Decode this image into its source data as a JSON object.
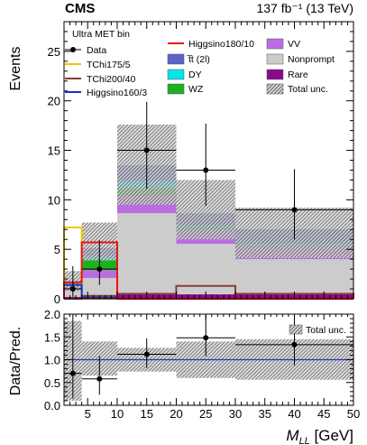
{
  "header": {
    "experiment": "CMS",
    "lumi": "137 fb⁻¹ (13 TeV)"
  },
  "legend": {
    "title": "Ultra MET bin",
    "col1": [
      {
        "label": "Data",
        "key": "data"
      },
      {
        "label": "TChi175/5",
        "key": "tchi175"
      },
      {
        "label": "TChi200/40",
        "key": "tchi200"
      },
      {
        "label": "Higgsino160/3",
        "key": "higgsino160"
      }
    ],
    "col2": [
      {
        "label": "Higgsino180/10",
        "key": "higgsino180"
      },
      {
        "label": "t̅t (2l)",
        "key": "ttbar"
      },
      {
        "label": "DY",
        "key": "dy"
      },
      {
        "label": "WZ",
        "key": "wz"
      }
    ],
    "col3": [
      {
        "label": "VV",
        "key": "vv"
      },
      {
        "label": "Nonprompt",
        "key": "nonprompt"
      },
      {
        "label": "Rare",
        "key": "rare"
      },
      {
        "label": "Total unc.",
        "key": "unc"
      }
    ]
  },
  "colors": {
    "vv": "#b96de0",
    "nonprompt": "#cccccc",
    "rare": "#8b0a8b",
    "ttbar": "#5b63c8",
    "dy": "#00e6ea",
    "wz": "#1fb01f",
    "tchi175": "#f2c600",
    "tchi200": "#8b3a3a",
    "higgsino160": "#1133cc",
    "higgsino180": "#ee1111",
    "ratio_line": "#2233cc",
    "data": "#000000"
  },
  "chart_data": [
    {
      "type": "bar",
      "title": "",
      "xlabel": "M_LL [GeV]",
      "ylabel": "Events",
      "xlim": [
        1,
        50
      ],
      "ylim": [
        0,
        28
      ],
      "bin_edges": [
        1,
        4,
        10,
        20,
        30,
        50
      ],
      "y_ticks": [
        0,
        5,
        10,
        15,
        20,
        25
      ],
      "stack": [
        {
          "name": "Rare",
          "key": "rare",
          "values": [
            0.2,
            0.25,
            0.45,
            0.45,
            0.45
          ]
        },
        {
          "name": "Nonprompt",
          "key": "nonprompt",
          "values": [
            0.6,
            1.85,
            8.2,
            5.1,
            3.55
          ]
        },
        {
          "name": "VV",
          "key": "vv",
          "values": [
            0.4,
            0.8,
            1.75,
            1.45,
            1.3
          ]
        },
        {
          "name": "WZ",
          "key": "wz",
          "values": [
            0.3,
            1.0,
            0.75,
            0.25,
            0.15
          ]
        },
        {
          "name": "DY",
          "key": "dy",
          "values": [
            0.1,
            0.4,
            0.75,
            0.15,
            0.1
          ]
        },
        {
          "name": "t̅t (2l)",
          "key": "ttbar",
          "values": [
            0.15,
            0.8,
            1.55,
            1.2,
            1.45
          ]
        }
      ],
      "total_unc_band": [
        {
          "low": 0.8,
          "high": 2.8
        },
        {
          "low": 3.9,
          "high": 7.7
        },
        {
          "low": 9.5,
          "high": 17.6
        },
        {
          "low": 6.0,
          "high": 12.0
        },
        {
          "low": 4.1,
          "high": 9.2
        }
      ],
      "signals": [
        {
          "name": "TChi175/5",
          "key": "tchi175",
          "values": [
            7.2,
            0.0,
            0.0,
            0.0,
            0.0
          ]
        },
        {
          "name": "TChi200/40",
          "key": "tchi200",
          "values": [
            0.0,
            0.3,
            0.5,
            1.3,
            0.5
          ]
        },
        {
          "name": "Higgsino160/3",
          "key": "higgsino160",
          "values": [
            1.4,
            0.1,
            0.0,
            0.0,
            0.0
          ]
        },
        {
          "name": "Higgsino180/10",
          "key": "higgsino180",
          "values": [
            1.65,
            5.7,
            0.0,
            0.0,
            0.0
          ]
        }
      ],
      "data": [
        {
          "x": 2.5,
          "y": 1,
          "err_lo": 0.8,
          "err_hi": 2.3
        },
        {
          "x": 7,
          "y": 3,
          "err_lo": 1.6,
          "err_hi": 2.9
        },
        {
          "x": 15,
          "y": 15,
          "err_lo": 3.9,
          "err_hi": 4.9
        },
        {
          "x": 25,
          "y": 13,
          "err_lo": 3.6,
          "err_hi": 4.7
        },
        {
          "x": 40,
          "y": 9,
          "err_lo": 3.0,
          "err_hi": 4.1
        }
      ]
    },
    {
      "type": "scatter",
      "title": "",
      "xlabel": "M_LL [GeV]",
      "ylabel": "Data/Pred.",
      "xlim": [
        1,
        50
      ],
      "ylim": [
        0,
        2
      ],
      "x_ticks": [
        5,
        10,
        15,
        20,
        25,
        30,
        35,
        40,
        45,
        50
      ],
      "y_ticks": [
        "0.0",
        "0.5",
        "1.0",
        "1.5",
        "2.0"
      ],
      "reference_line": 1.0,
      "unc_band": [
        {
          "low": 0.1,
          "high": 1.85
        },
        {
          "low": 0.65,
          "high": 1.4
        },
        {
          "low": 0.74,
          "high": 1.26
        },
        {
          "low": 0.6,
          "high": 1.4
        },
        {
          "low": 0.56,
          "high": 1.45
        }
      ],
      "legend_label": "Total unc.",
      "points": [
        {
          "x": 2.5,
          "y": 0.7,
          "err_lo": 0.55,
          "err_hi": 1.6
        },
        {
          "x": 7,
          "y": 0.58,
          "err_lo": 0.35,
          "err_hi": 0.5
        },
        {
          "x": 15,
          "y": 1.12,
          "err_lo": 0.3,
          "err_hi": 0.35
        },
        {
          "x": 25,
          "y": 1.48,
          "err_lo": 0.4,
          "err_hi": 0.55
        },
        {
          "x": 40,
          "y": 1.33,
          "err_lo": 0.45,
          "err_hi": 0.6
        }
      ]
    }
  ]
}
